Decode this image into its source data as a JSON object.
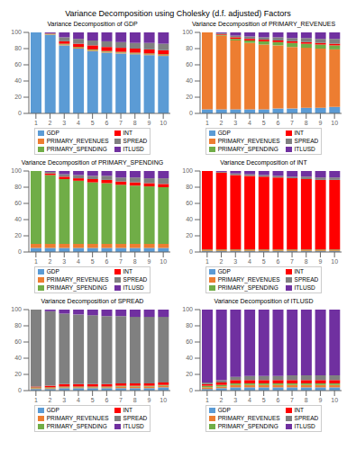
{
  "title": "Variance Decomposition using Cholesky (d.f. adjusted) Factors",
  "chart_data": [
    {
      "type": "bar",
      "title": "Variance Decomposition of GDP",
      "stacked": true,
      "grid": false,
      "legend": "bottom",
      "x": [
        1,
        2,
        3,
        4,
        5,
        6,
        7,
        8,
        9,
        10
      ],
      "xlim": [
        0.5,
        10.5
      ],
      "xticks": [
        1,
        2,
        3,
        4,
        5,
        6,
        7,
        8,
        9,
        10
      ],
      "ylim": [
        0,
        100
      ],
      "yticks": [
        0,
        20,
        40,
        60,
        80,
        100
      ],
      "series": [
        {
          "name": "GDP",
          "color": "#5B9BD5",
          "values": [
            100,
            97,
            84,
            80,
            77,
            75,
            74,
            73,
            72,
            71
          ]
        },
        {
          "name": "PRIMARY_REVENUES",
          "color": "#ED7D31",
          "values": [
            0,
            0.5,
            1,
            1,
            1,
            1,
            1,
            1,
            1,
            1
          ]
        },
        {
          "name": "PRIMARY_SPENDING",
          "color": "#70AD47",
          "values": [
            0,
            0.5,
            1,
            1,
            1,
            1,
            1,
            1,
            1,
            1
          ]
        },
        {
          "name": "INT",
          "color": "#FF0000",
          "values": [
            0,
            0.5,
            3,
            4,
            5,
            5,
            5,
            5,
            5,
            5
          ]
        },
        {
          "name": "SPREAD",
          "color": "#808080",
          "values": [
            0,
            0.5,
            5,
            6,
            6,
            7,
            7,
            7,
            8,
            8
          ]
        },
        {
          "name": "ITLUSD",
          "color": "#7030A0",
          "values": [
            0,
            1,
            6,
            8,
            10,
            11,
            12,
            13,
            13,
            14
          ]
        }
      ]
    },
    {
      "type": "bar",
      "title": "Variance Decomposition of PRIMARY_REVENUES",
      "stacked": true,
      "grid": false,
      "legend": "bottom",
      "x": [
        1,
        2,
        3,
        4,
        5,
        6,
        7,
        8,
        9,
        10
      ],
      "xlim": [
        0.5,
        10.5
      ],
      "xticks": [
        1,
        2,
        3,
        4,
        5,
        6,
        7,
        8,
        9,
        10
      ],
      "ylim": [
        0,
        100
      ],
      "yticks": [
        0,
        20,
        40,
        60,
        80,
        100
      ],
      "series": [
        {
          "name": "GDP",
          "color": "#5B9BD5",
          "values": [
            5,
            5,
            5,
            5,
            5,
            6,
            6,
            7,
            7,
            8
          ]
        },
        {
          "name": "PRIMARY_REVENUES",
          "color": "#ED7D31",
          "values": [
            95,
            91,
            85,
            82,
            80,
            78,
            76,
            74,
            73,
            71
          ]
        },
        {
          "name": "PRIMARY_SPENDING",
          "color": "#70AD47",
          "values": [
            0,
            1,
            2,
            3,
            4,
            4,
            5,
            5,
            5,
            5
          ]
        },
        {
          "name": "INT",
          "color": "#FF0000",
          "values": [
            0,
            1,
            2,
            2,
            2,
            2,
            2,
            2,
            2,
            2
          ]
        },
        {
          "name": "SPREAD",
          "color": "#808080",
          "values": [
            0,
            1,
            2,
            3,
            3,
            4,
            4,
            5,
            5,
            6
          ]
        },
        {
          "name": "ITLUSD",
          "color": "#7030A0",
          "values": [
            0,
            1,
            4,
            5,
            6,
            6,
            7,
            7,
            8,
            8
          ]
        }
      ]
    },
    {
      "type": "bar",
      "title": "Variance Decomposition of PRIMARY_SPENDING",
      "stacked": true,
      "grid": false,
      "legend": "bottom",
      "x": [
        1,
        2,
        3,
        4,
        5,
        6,
        7,
        8,
        9,
        10
      ],
      "xlim": [
        0.5,
        10.5
      ],
      "xticks": [
        1,
        2,
        3,
        4,
        5,
        6,
        7,
        8,
        9,
        10
      ],
      "ylim": [
        0,
        100
      ],
      "yticks": [
        0,
        20,
        40,
        60,
        80,
        100
      ],
      "series": [
        {
          "name": "GDP",
          "color": "#5B9BD5",
          "values": [
            5,
            5,
            5,
            5,
            5,
            5,
            5,
            5,
            5,
            5
          ]
        },
        {
          "name": "PRIMARY_REVENUES",
          "color": "#ED7D31",
          "values": [
            5,
            5,
            5,
            5,
            5,
            5,
            5,
            5,
            5,
            5
          ]
        },
        {
          "name": "PRIMARY_SPENDING",
          "color": "#70AD47",
          "values": [
            90,
            85,
            80,
            78,
            76,
            75,
            73,
            72,
            71,
            70
          ]
        },
        {
          "name": "INT",
          "color": "#FF0000",
          "values": [
            0,
            2,
            3,
            3,
            4,
            4,
            4,
            4,
            4,
            4
          ]
        },
        {
          "name": "SPREAD",
          "color": "#808080",
          "values": [
            0,
            2,
            3,
            4,
            4,
            5,
            5,
            6,
            6,
            7
          ]
        },
        {
          "name": "ITLUSD",
          "color": "#7030A0",
          "values": [
            0,
            1,
            4,
            5,
            6,
            6,
            8,
            8,
            9,
            9
          ]
        }
      ]
    },
    {
      "type": "bar",
      "title": "Variance Decomposition of INT",
      "stacked": true,
      "grid": false,
      "legend": "bottom",
      "x": [
        1,
        2,
        3,
        4,
        5,
        6,
        7,
        8,
        9,
        10
      ],
      "xlim": [
        0.5,
        10.5
      ],
      "xticks": [
        1,
        2,
        3,
        4,
        5,
        6,
        7,
        8,
        9,
        10
      ],
      "ylim": [
        0,
        100
      ],
      "yticks": [
        0,
        20,
        40,
        60,
        80,
        100
      ],
      "series": [
        {
          "name": "GDP",
          "color": "#5B9BD5",
          "values": [
            1,
            1,
            1,
            1,
            1,
            1,
            1,
            1,
            1,
            1
          ]
        },
        {
          "name": "PRIMARY_REVENUES",
          "color": "#ED7D31",
          "values": [
            1,
            1,
            1,
            1,
            1,
            1,
            1,
            1,
            1,
            1
          ]
        },
        {
          "name": "PRIMARY_SPENDING",
          "color": "#70AD47",
          "values": [
            1,
            1,
            1,
            1,
            1,
            1,
            1,
            1,
            1,
            1
          ]
        },
        {
          "name": "INT",
          "color": "#FF0000",
          "values": [
            97,
            95,
            92,
            91,
            90,
            89,
            88,
            87,
            86,
            86
          ]
        },
        {
          "name": "SPREAD",
          "color": "#808080",
          "values": [
            0,
            1,
            2,
            2,
            2,
            2,
            2,
            3,
            3,
            3
          ]
        },
        {
          "name": "ITLUSD",
          "color": "#7030A0",
          "values": [
            0,
            1,
            3,
            4,
            5,
            6,
            7,
            7,
            8,
            8
          ]
        }
      ]
    },
    {
      "type": "bar",
      "title": "Variance Decomposition of SPREAD",
      "stacked": true,
      "grid": false,
      "legend": "bottom",
      "x": [
        1,
        2,
        3,
        4,
        5,
        6,
        7,
        8,
        9,
        10
      ],
      "xlim": [
        0.5,
        10.5
      ],
      "xticks": [
        1,
        2,
        3,
        4,
        5,
        6,
        7,
        8,
        9,
        10
      ],
      "ylim": [
        0,
        100
      ],
      "yticks": [
        0,
        20,
        40,
        60,
        80,
        100
      ],
      "series": [
        {
          "name": "GDP",
          "color": "#5B9BD5",
          "values": [
            2,
            2,
            3,
            3,
            3,
            3,
            3,
            3,
            3,
            4
          ]
        },
        {
          "name": "PRIMARY_REVENUES",
          "color": "#ED7D31",
          "values": [
            1,
            1,
            1,
            1,
            1,
            1,
            2,
            2,
            2,
            2
          ]
        },
        {
          "name": "PRIMARY_SPENDING",
          "color": "#70AD47",
          "values": [
            1,
            1,
            1,
            1,
            1,
            1,
            1,
            1,
            1,
            1
          ]
        },
        {
          "name": "INT",
          "color": "#FF0000",
          "values": [
            1,
            2,
            3,
            3,
            3,
            3,
            3,
            3,
            3,
            3
          ]
        },
        {
          "name": "SPREAD",
          "color": "#808080",
          "values": [
            95,
            92,
            87,
            86,
            85,
            84,
            83,
            82,
            82,
            81
          ]
        },
        {
          "name": "ITLUSD",
          "color": "#7030A0",
          "values": [
            0,
            2,
            5,
            6,
            7,
            8,
            8,
            9,
            9,
            9
          ]
        }
      ]
    },
    {
      "type": "bar",
      "title": "Variance Decomposition of ITLUSD",
      "stacked": true,
      "grid": false,
      "legend": "bottom",
      "x": [
        1,
        2,
        3,
        4,
        5,
        6,
        7,
        8,
        9,
        10
      ],
      "xlim": [
        0.5,
        10.5
      ],
      "xticks": [
        1,
        2,
        3,
        4,
        5,
        6,
        7,
        8,
        9,
        10
      ],
      "ylim": [
        0,
        100
      ],
      "yticks": [
        0,
        20,
        40,
        60,
        80,
        100
      ],
      "series": [
        {
          "name": "GDP",
          "color": "#5B9BD5",
          "values": [
            2,
            3,
            4,
            4,
            4,
            4,
            4,
            4,
            4,
            4
          ]
        },
        {
          "name": "PRIMARY_REVENUES",
          "color": "#ED7D31",
          "values": [
            2,
            2,
            3,
            3,
            3,
            3,
            3,
            3,
            3,
            3
          ]
        },
        {
          "name": "PRIMARY_SPENDING",
          "color": "#70AD47",
          "values": [
            2,
            2,
            2,
            2,
            2,
            2,
            2,
            2,
            2,
            2
          ]
        },
        {
          "name": "INT",
          "color": "#FF0000",
          "values": [
            2,
            3,
            4,
            4,
            4,
            4,
            4,
            4,
            4,
            4
          ]
        },
        {
          "name": "SPREAD",
          "color": "#808080",
          "values": [
            2,
            3,
            4,
            5,
            5,
            5,
            6,
            6,
            6,
            6
          ]
        },
        {
          "name": "ITLUSD",
          "color": "#7030A0",
          "values": [
            90,
            87,
            83,
            82,
            82,
            82,
            81,
            81,
            81,
            81
          ]
        }
      ]
    }
  ]
}
